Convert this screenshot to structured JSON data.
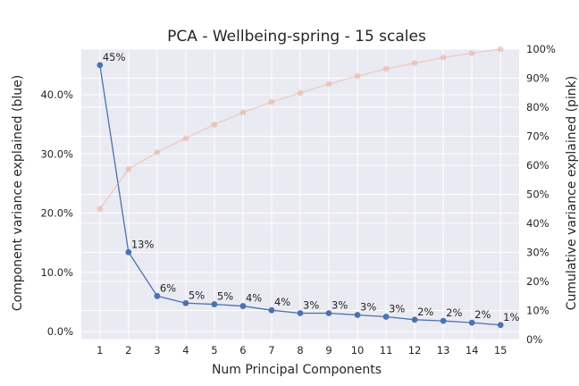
{
  "chart_data": {
    "type": "line",
    "title": "PCA - Wellbeing-spring - 15 scales",
    "xlabel": "Num Principal Components",
    "ylabel": "Component variance explained (blue)",
    "y2label": "Cumulative variance explained (pink)",
    "x": [
      1,
      2,
      3,
      4,
      5,
      6,
      7,
      8,
      9,
      10,
      11,
      12,
      13,
      14,
      15
    ],
    "x_tick_labels": [
      "1",
      "2",
      "3",
      "4",
      "5",
      "6",
      "7",
      "8",
      "9",
      "10",
      "11",
      "12",
      "13",
      "14",
      "15"
    ],
    "xlim": [
      0.35,
      15.65
    ],
    "ylim": [
      -0.0135,
      0.477
    ],
    "y2lim": [
      0,
      1.0
    ],
    "y_ticks": [
      0,
      0.1,
      0.2,
      0.3,
      0.4
    ],
    "y_tick_labels": [
      "0.0%",
      "10.0%",
      "20.0%",
      "30.0%",
      "40.0%"
    ],
    "y2_ticks": [
      0,
      0.1,
      0.2,
      0.3,
      0.4,
      0.5,
      0.6,
      0.7,
      0.8,
      0.9,
      1.0
    ],
    "y2_tick_labels": [
      "0%",
      "10%",
      "20%",
      "30%",
      "40%",
      "50%",
      "60%",
      "70%",
      "80%",
      "90%",
      "100%"
    ],
    "grid": true,
    "series": [
      {
        "axis": "left",
        "color": "#4c72b0",
        "values": [
          0.45,
          0.134,
          0.06,
          0.048,
          0.046,
          0.043,
          0.036,
          0.031,
          0.031,
          0.028,
          0.025,
          0.02,
          0.018,
          0.015,
          0.011
        ],
        "data_labels": [
          "45%",
          "13%",
          "6%",
          "5%",
          "5%",
          "4%",
          "4%",
          "3%",
          "3%",
          "3%",
          "3%",
          "2%",
          "2%",
          "2%",
          "1%"
        ]
      },
      {
        "axis": "right",
        "color": "#e8a990",
        "values": [
          0.45,
          0.587,
          0.645,
          0.693,
          0.74,
          0.782,
          0.818,
          0.849,
          0.88,
          0.907,
          0.932,
          0.952,
          0.971,
          0.986,
          1.0
        ]
      }
    ]
  }
}
